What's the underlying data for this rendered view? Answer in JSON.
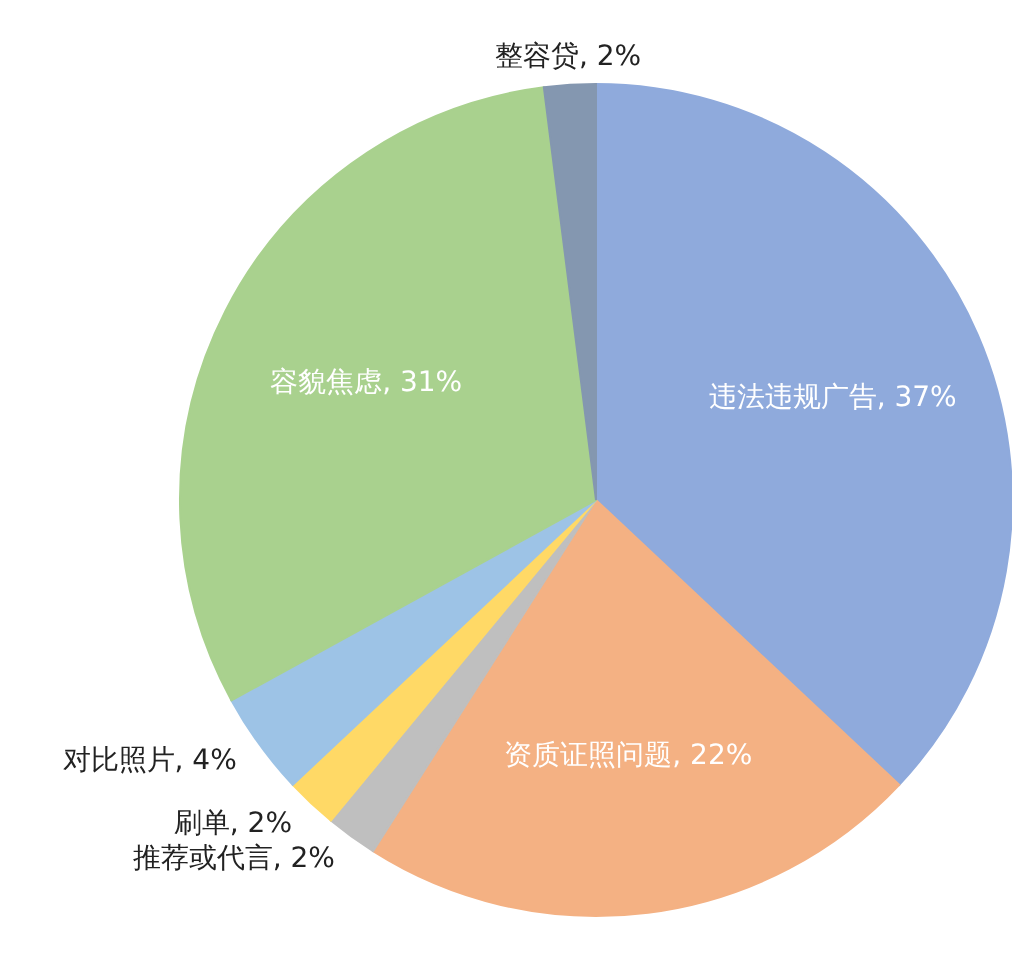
{
  "chart_data": {
    "type": "pie",
    "categories": [
      "违法违规广告",
      "资质证照问题",
      "推荐或代言",
      "刷单",
      "对比照片",
      "容貌焦虑",
      "整容贷"
    ],
    "values": [
      37,
      22,
      2,
      2,
      4,
      31,
      2
    ],
    "value_labels": [
      "37%",
      "22%",
      "2%",
      "2%",
      "4%",
      "31%",
      "2%"
    ],
    "colors": [
      "#8faadc",
      "#f4b183",
      "#bfbfbf",
      "#ffd966",
      "#9dc3e6",
      "#a9d18e",
      "#8497b0"
    ],
    "legend": false
  }
}
